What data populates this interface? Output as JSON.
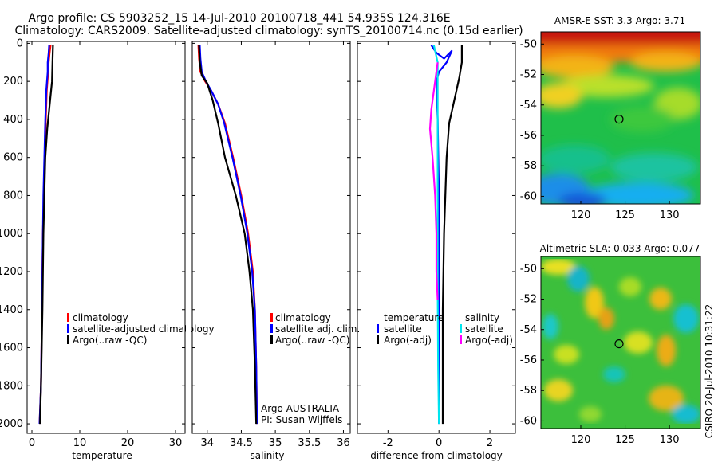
{
  "header": {
    "line1": "Argo profile: CS 5903252_15 14-Jul-2010 20100718_441 54.935S 124.316E",
    "line2": "Climatology: CARS2009. Satellite-adjusted climatology: synTS_20100714.nc (0.15d earlier)"
  },
  "colors": {
    "clim": "#ff0000",
    "sat": "#0000ff",
    "argo": "#000000",
    "sal_sat": "#00e5ee",
    "sal_argo": "#ff00ff"
  },
  "chart_data": [
    {
      "id": "temperature",
      "type": "line",
      "xlabel": "temperature",
      "xlim": [
        -1,
        32
      ],
      "ylim": [
        2050,
        -10
      ],
      "xticks": [
        0,
        10,
        20,
        30
      ],
      "yticks": [
        0,
        200,
        400,
        600,
        800,
        1000,
        1200,
        1400,
        1600,
        1800,
        2000
      ],
      "legend": [
        "climatology",
        "satellite-adjusted climatology",
        "Argo(..raw -QC)"
      ],
      "series": [
        {
          "name": "climatology",
          "color": "clim",
          "points": [
            [
              3.9,
              10
            ],
            [
              3.7,
              50
            ],
            [
              3.5,
              100
            ],
            [
              3.4,
              150
            ],
            [
              3.1,
              250
            ],
            [
              2.9,
              400
            ],
            [
              2.7,
              600
            ],
            [
              2.5,
              800
            ],
            [
              2.3,
              1000
            ],
            [
              2.1,
              1400
            ],
            [
              1.9,
              1800
            ],
            [
              1.6,
              2000
            ]
          ]
        },
        {
          "name": "satellite-adjusted climatology",
          "color": "sat",
          "points": [
            [
              3.6,
              10
            ],
            [
              3.5,
              50
            ],
            [
              3.3,
              100
            ],
            [
              3.3,
              150
            ],
            [
              3.0,
              250
            ],
            [
              2.8,
              400
            ],
            [
              2.6,
              600
            ],
            [
              2.4,
              800
            ],
            [
              2.3,
              1000
            ],
            [
              2.1,
              1400
            ],
            [
              1.9,
              1800
            ],
            [
              1.6,
              2000
            ]
          ]
        },
        {
          "name": "Argo(..raw -QC)",
          "color": "argo",
          "points": [
            [
              4.4,
              10
            ],
            [
              4.3,
              100
            ],
            [
              4.2,
              200
            ],
            [
              3.8,
              300
            ],
            [
              3.2,
              450
            ],
            [
              2.8,
              600
            ],
            [
              2.6,
              800
            ],
            [
              2.4,
              1000
            ],
            [
              2.2,
              1400
            ],
            [
              1.9,
              1800
            ],
            [
              1.7,
              2000
            ]
          ]
        }
      ]
    },
    {
      "id": "salinity",
      "type": "line",
      "xlabel": "salinity",
      "xlim": [
        33.78,
        36.1
      ],
      "ylim": [
        2050,
        -10
      ],
      "xticks": [
        34,
        34.5,
        35,
        35.5,
        36
      ],
      "xticklabels": [
        "34",
        "34.5",
        "35",
        "35.5",
        "36"
      ],
      "legend": [
        "climatology",
        "satellite adj. clim.",
        "Argo(..raw -QC)"
      ],
      "annotation": [
        "Argo AUSTRALIA",
        "PI: Susan Wijffels"
      ],
      "series": [
        {
          "name": "climatology",
          "color": "clim",
          "points": [
            [
              33.87,
              10
            ],
            [
              33.88,
              80
            ],
            [
              33.9,
              150
            ],
            [
              33.97,
              200
            ],
            [
              34.06,
              250
            ],
            [
              34.16,
              320
            ],
            [
              34.26,
              420
            ],
            [
              34.38,
              600
            ],
            [
              34.5,
              800
            ],
            [
              34.6,
              1000
            ],
            [
              34.67,
              1200
            ],
            [
              34.7,
              1400
            ],
            [
              34.72,
              1700
            ],
            [
              34.73,
              2000
            ]
          ]
        },
        {
          "name": "satellite adj. clim.",
          "color": "sat",
          "points": [
            [
              33.89,
              10
            ],
            [
              33.9,
              80
            ],
            [
              33.92,
              150
            ],
            [
              33.98,
              200
            ],
            [
              34.06,
              250
            ],
            [
              34.16,
              320
            ],
            [
              34.25,
              420
            ],
            [
              34.37,
              600
            ],
            [
              34.49,
              800
            ],
            [
              34.59,
              1000
            ],
            [
              34.66,
              1200
            ],
            [
              34.7,
              1400
            ],
            [
              34.72,
              1700
            ],
            [
              34.73,
              2000
            ]
          ]
        },
        {
          "name": "Argo(..raw -QC)",
          "color": "argo",
          "points": [
            [
              33.88,
              10
            ],
            [
              33.89,
              100
            ],
            [
              33.92,
              170
            ],
            [
              34.0,
              210
            ],
            [
              34.08,
              300
            ],
            [
              34.16,
              420
            ],
            [
              34.26,
              600
            ],
            [
              34.42,
              800
            ],
            [
              34.55,
              1000
            ],
            [
              34.62,
              1200
            ],
            [
              34.67,
              1400
            ],
            [
              34.7,
              1700
            ],
            [
              34.72,
              2000
            ]
          ]
        }
      ]
    },
    {
      "id": "difference",
      "type": "line",
      "xlabel": "difference from climatology",
      "xlim": [
        -3.2,
        3.0
      ],
      "ylim": [
        2050,
        -10
      ],
      "xticks": [
        -2,
        0,
        2
      ],
      "legend_temp_title": "temperature",
      "legend_sal_title": "salinity",
      "legend_temp": [
        "satellite",
        "Argo(-adj)"
      ],
      "legend_sal": [
        "satellite",
        "Argo(-adj)"
      ],
      "series": [
        {
          "name": "temperature satellite",
          "color": "sat",
          "points": [
            [
              -0.3,
              10
            ],
            [
              -0.1,
              50
            ],
            [
              0.2,
              80
            ],
            [
              0.5,
              40
            ],
            [
              0.3,
              100
            ],
            [
              0.0,
              150
            ],
            [
              -0.1,
              200
            ],
            [
              -0.05,
              400
            ],
            [
              0.0,
              800
            ],
            [
              0.0,
              1200
            ],
            [
              0.0,
              1600
            ],
            [
              0.0,
              2000
            ]
          ]
        },
        {
          "name": "temperature Argo(-adj)",
          "color": "argo",
          "points": [
            [
              0.9,
              10
            ],
            [
              0.9,
              100
            ],
            [
              0.8,
              180
            ],
            [
              0.6,
              300
            ],
            [
              0.4,
              420
            ],
            [
              0.3,
              600
            ],
            [
              0.25,
              800
            ],
            [
              0.2,
              1000
            ],
            [
              0.15,
              1400
            ],
            [
              0.15,
              2000
            ]
          ]
        },
        {
          "name": "salinity satellite",
          "color": "sal_sat",
          "points": [
            [
              -0.2,
              10
            ],
            [
              -0.05,
              100
            ],
            [
              -0.05,
              250
            ],
            [
              -0.05,
              400
            ],
            [
              -0.05,
              600
            ],
            [
              -0.05,
              900
            ],
            [
              -0.05,
              1300
            ],
            [
              -0.03,
              1700
            ],
            [
              0.0,
              2000
            ]
          ]
        },
        {
          "name": "salinity Argo(-adj)",
          "color": "sal_argo",
          "points": [
            [
              -0.05,
              100
            ],
            [
              -0.1,
              150
            ],
            [
              -0.2,
              250
            ],
            [
              -0.3,
              350
            ],
            [
              -0.35,
              450
            ],
            [
              -0.25,
              600
            ],
            [
              -0.15,
              800
            ],
            [
              -0.1,
              1000
            ],
            [
              -0.1,
              1200
            ],
            [
              -0.05,
              1350
            ]
          ]
        }
      ]
    },
    {
      "id": "sst_map",
      "type": "heatmap",
      "title": "AMSR-E SST: 3.3 Argo: 3.71",
      "xlim": [
        115.5,
        133.5
      ],
      "ylim": [
        -60.5,
        -49.2
      ],
      "xticks": [
        120,
        125,
        130
      ],
      "yticks": [
        -50,
        -52,
        -54,
        -56,
        -58,
        -60
      ],
      "marker": [
        124.316,
        -54.935
      ]
    },
    {
      "id": "sla_map",
      "type": "heatmap",
      "title": "Altimetric SLA: 0.033 Argo: 0.077",
      "xlim": [
        115.5,
        133.5
      ],
      "ylim": [
        -60.5,
        -49.2
      ],
      "xticks": [
        120,
        125,
        130
      ],
      "yticks": [
        -50,
        -52,
        -54,
        -56,
        -58,
        -60
      ],
      "marker": [
        124.316,
        -54.935
      ]
    }
  ],
  "footer": {
    "stamp": "CSIRO 20-Jul-2010 10:31:22"
  }
}
